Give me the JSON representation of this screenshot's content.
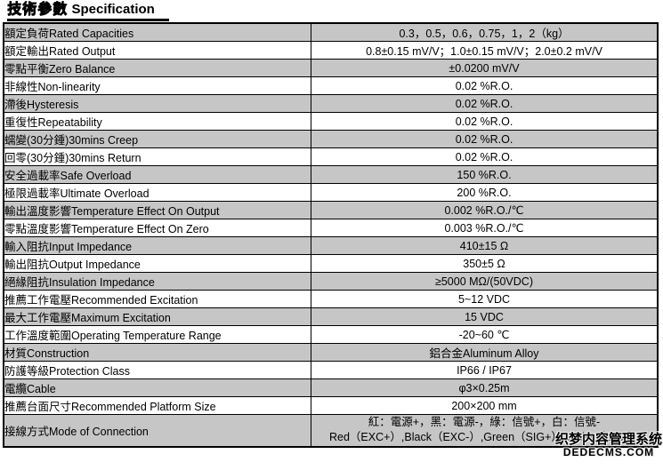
{
  "title": {
    "cjk": "技術參數",
    "en": "Specification"
  },
  "colors": {
    "row_gray": "#c6c6c6",
    "row_white": "#ffffff",
    "border": "#000000"
  },
  "table": {
    "rows": [
      {
        "label": "額定負荷Rated Capacities",
        "value": "0.3，0.5，0.6，0.75，1，2（kg）"
      },
      {
        "label": "額定輸出Rated Output",
        "value": "0.8±0.15 mV/V；1.0±0.15 mV/V；2.0±0.2 mV/V"
      },
      {
        "label": "零點平衡Zero Balance",
        "value": "±0.0200 mV/V"
      },
      {
        "label": "非線性Non-linearity",
        "value": "0.02 %R.O."
      },
      {
        "label": "滯後Hysteresis",
        "value": "0.02 %R.O."
      },
      {
        "label": "重復性Repeatability",
        "value": "0.02 %R.O."
      },
      {
        "label": "蠕變(30分鍾)30mins Creep",
        "value": "0.02 %R.O."
      },
      {
        "label": "回零(30分鍾)30mins Return",
        "value": "0.02 %R.O."
      },
      {
        "label": "安全過載率Safe Overload",
        "value": "150 %R.O."
      },
      {
        "label": "極限過載率Ultimate Overload",
        "value": "200 %R.O."
      },
      {
        "label": "輸出溫度影響Temperature Effect On Output",
        "value": "0.002 %R.O./℃"
      },
      {
        "label": "零點溫度影響Temperature Effect On Zero",
        "value": "0.003 %R.O./℃"
      },
      {
        "label": "輸入阻抗Input Impedance",
        "value": "410±15 Ω"
      },
      {
        "label": "輸出阻抗Output Impedance",
        "value": "350±5 Ω"
      },
      {
        "label": "絕緣阻抗Insulation Impedance",
        "value": "≥5000 MΩ/(50VDC)"
      },
      {
        "label": "推薦工作電壓Recommended Excitation",
        "value": "5~12 VDC"
      },
      {
        "label": "最大工作電壓Maximum Excitation",
        "value": "15 VDC"
      },
      {
        "label": "工作溫度範圍Operating Temperature Range",
        "value": "-20~60 ℃"
      },
      {
        "label": "材質Construction",
        "value": "鋁合金Aluminum Alloy"
      },
      {
        "label": "防護等級Protection Class",
        "value": "IP66 / IP67"
      },
      {
        "label": "電纜Cable",
        "value": "φ3×0.25m"
      },
      {
        "label": "推薦台面尺寸Recommended Platform Size",
        "value": "200×200 mm"
      },
      {
        "label": "接線方式Mode of Connection",
        "value_lines": [
          "紅：電源+，黑：電源-，綠：信號+，白：信號-",
          "Red（EXC+）,Black（EXC-）,Green（SIG+）,White（SIG-）"
        ]
      }
    ]
  },
  "watermark": {
    "line1": "织梦内容管理系统",
    "line2": "DEDECMS.COM"
  }
}
